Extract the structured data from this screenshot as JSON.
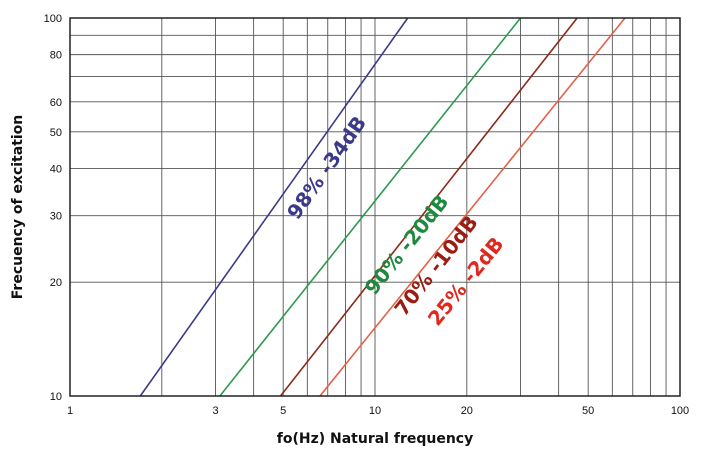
{
  "chart_data": {
    "type": "line",
    "title": "",
    "xlabel": "fo(Hz) Natural frequency",
    "ylabel": "Frecuency of excitation",
    "xscale": "log",
    "yscale": "log",
    "xlim": [
      1,
      100
    ],
    "ylim": [
      10,
      100
    ],
    "grid": true,
    "x_ticks": [
      {
        "v": 1,
        "label": "1"
      },
      {
        "v": 3,
        "label": "3"
      },
      {
        "v": 5,
        "label": "5"
      },
      {
        "v": 10,
        "label": "10"
      },
      {
        "v": 20,
        "label": "20"
      },
      {
        "v": 50,
        "label": "50"
      },
      {
        "v": 100,
        "label": "100"
      }
    ],
    "y_ticks": [
      {
        "v": 10,
        "label": "10"
      },
      {
        "v": 20,
        "label": "20"
      },
      {
        "v": 30,
        "label": "30"
      },
      {
        "v": 40,
        "label": "40"
      },
      {
        "v": 50,
        "label": "50"
      },
      {
        "v": 60,
        "label": "60"
      },
      {
        "v": 80,
        "label": "80"
      },
      {
        "v": 100,
        "label": "100"
      }
    ],
    "x_grid": [
      1,
      2,
      3,
      4,
      5,
      6,
      7,
      8,
      9,
      10,
      20,
      30,
      40,
      50,
      60,
      70,
      80,
      90,
      100
    ],
    "y_grid": [
      10,
      20,
      30,
      40,
      50,
      60,
      70,
      80,
      90,
      100
    ],
    "series": [
      {
        "name": "98% -34dB",
        "color": "#3b3a88",
        "points": [
          [
            1.7,
            10
          ],
          [
            12.8,
            100
          ]
        ],
        "label_at": [
          7.0,
          40
        ],
        "label_color": "#3b3a88"
      },
      {
        "name": "90% -20dB",
        "color": "#2e9a4f",
        "points": [
          [
            3.1,
            10
          ],
          [
            30.0,
            100
          ]
        ],
        "label_at": [
          12.8,
          25
        ],
        "label_color": "#1f8a3d"
      },
      {
        "name": "70% -10dB",
        "color": "#8b2a1a",
        "points": [
          [
            4.9,
            10
          ],
          [
            46.0,
            100
          ]
        ],
        "label_at": [
          16.0,
          22
        ],
        "label_color": "#9a1c12"
      },
      {
        "name": "25% -2dB",
        "color": "#e4604a",
        "points": [
          [
            6.6,
            10
          ],
          [
            66.0,
            100
          ]
        ],
        "label_at": [
          20.0,
          20
        ],
        "label_color": "#e0281e"
      }
    ]
  }
}
